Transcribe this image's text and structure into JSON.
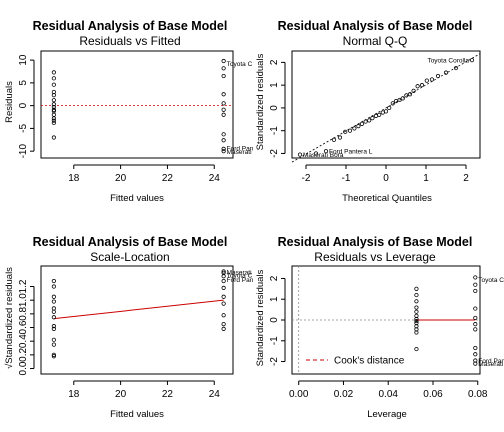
{
  "chart_data": [
    {
      "type": "scatter",
      "title": "Residual Analysis of Base Model",
      "subtitle": "Residuals vs Fitted",
      "xlabel": "Fitted values",
      "ylabel": "Residuals",
      "xlim": [
        16.6,
        24.8
      ],
      "ylim": [
        -11.5,
        12
      ],
      "xticks": [
        18,
        20,
        22,
        24
      ],
      "yticks": [
        -10,
        -5,
        0,
        5,
        10
      ],
      "hline": {
        "y": 0,
        "color": "#cc0000",
        "dash": "2,2"
      },
      "points": [
        {
          "x": 17.15,
          "y": 7.3
        },
        {
          "x": 17.15,
          "y": 6.0
        },
        {
          "x": 17.15,
          "y": 4.6
        },
        {
          "x": 17.15,
          "y": 3.0
        },
        {
          "x": 17.15,
          "y": 2.3
        },
        {
          "x": 17.15,
          "y": 1.2
        },
        {
          "x": 17.15,
          "y": 0.3
        },
        {
          "x": 17.15,
          "y": -0.3
        },
        {
          "x": 17.15,
          "y": -0.9
        },
        {
          "x": 17.15,
          "y": -1.2
        },
        {
          "x": 17.15,
          "y": -2.0
        },
        {
          "x": 17.15,
          "y": -2.8
        },
        {
          "x": 17.15,
          "y": -3.3
        },
        {
          "x": 17.15,
          "y": -3.8
        },
        {
          "x": 17.15,
          "y": -7.0
        },
        {
          "x": 24.4,
          "y": 9.8
        },
        {
          "x": 24.4,
          "y": 8.2
        },
        {
          "x": 24.4,
          "y": 6.5
        },
        {
          "x": 24.4,
          "y": 2.5
        },
        {
          "x": 24.4,
          "y": 0.5
        },
        {
          "x": 24.4,
          "y": -0.9
        },
        {
          "x": 24.4,
          "y": -2.0
        },
        {
          "x": 24.4,
          "y": -6.3
        },
        {
          "x": 24.4,
          "y": -7.6
        },
        {
          "x": 24.4,
          "y": -9.5
        },
        {
          "x": 24.4,
          "y": -10.0
        }
      ],
      "labels": [
        {
          "text": "Toyota C",
          "x": 24.4,
          "y": 9.3
        },
        {
          "text": "Ford Pan",
          "x": 24.4,
          "y": -9.3
        },
        {
          "text": "Maserati",
          "x": 24.4,
          "y": -10.1
        }
      ]
    },
    {
      "type": "scatter",
      "title": "Residual Analysis of Base Model",
      "subtitle": "Normal Q-Q",
      "xlabel": "Theoretical Quantiles",
      "ylabel": "Standardized residuals",
      "xlim": [
        -2.35,
        2.35
      ],
      "ylim": [
        -2.2,
        2.5
      ],
      "xticks": [
        -2,
        -1,
        0,
        1,
        2
      ],
      "yticks": [
        -2,
        -1,
        0,
        1,
        2
      ],
      "refline": {
        "x1": -2.35,
        "y1": -2.38,
        "x2": 2.35,
        "y2": 2.38,
        "color": "#000",
        "dash": "2,2"
      },
      "points": [
        {
          "x": -2.15,
          "y": -2.05
        },
        {
          "x": -1.75,
          "y": -2.0
        },
        {
          "x": -1.5,
          "y": -1.9
        },
        {
          "x": -1.3,
          "y": -1.4
        },
        {
          "x": -1.15,
          "y": -1.3
        },
        {
          "x": -1.02,
          "y": -1.05
        },
        {
          "x": -0.9,
          "y": -1.0
        },
        {
          "x": -0.79,
          "y": -0.9
        },
        {
          "x": -0.69,
          "y": -0.8
        },
        {
          "x": -0.6,
          "y": -0.7
        },
        {
          "x": -0.51,
          "y": -0.6
        },
        {
          "x": -0.42,
          "y": -0.55
        },
        {
          "x": -0.34,
          "y": -0.45
        },
        {
          "x": -0.25,
          "y": -0.35
        },
        {
          "x": -0.17,
          "y": -0.3
        },
        {
          "x": -0.08,
          "y": -0.2
        },
        {
          "x": 0.0,
          "y": -0.15
        },
        {
          "x": 0.08,
          "y": 0.0
        },
        {
          "x": 0.17,
          "y": 0.2
        },
        {
          "x": 0.25,
          "y": 0.3
        },
        {
          "x": 0.34,
          "y": 0.35
        },
        {
          "x": 0.42,
          "y": 0.42
        },
        {
          "x": 0.51,
          "y": 0.55
        },
        {
          "x": 0.6,
          "y": 0.6
        },
        {
          "x": 0.69,
          "y": 0.75
        },
        {
          "x": 0.79,
          "y": 0.95
        },
        {
          "x": 0.9,
          "y": 1.0
        },
        {
          "x": 1.02,
          "y": 1.2
        },
        {
          "x": 1.15,
          "y": 1.25
        },
        {
          "x": 1.3,
          "y": 1.4
        },
        {
          "x": 1.5,
          "y": 1.55
        },
        {
          "x": 1.75,
          "y": 1.75
        },
        {
          "x": 2.15,
          "y": 2.1
        }
      ],
      "labels": [
        {
          "text": "Toyota Corolla",
          "x": 2.15,
          "y": 2.1,
          "anchor": "end"
        },
        {
          "text": "Ford Pantera L",
          "x": -1.5,
          "y": -1.9,
          "anchor": "start"
        },
        {
          "text": "Maserati Bora",
          "x": -2.15,
          "y": -2.05,
          "anchor": "start"
        }
      ]
    },
    {
      "type": "scatter",
      "title": "Residual Analysis of Base Model",
      "subtitle": "Scale-Location",
      "xlabel": "Fitted values",
      "ylabel": "√Standardized residuals",
      "xlim": [
        16.6,
        24.8
      ],
      "ylim": [
        -0.08,
        1.5
      ],
      "xticks": [
        18,
        20,
        22,
        24
      ],
      "yticks": [
        0.0,
        0.2,
        0.4,
        0.6,
        0.8,
        1.0,
        1.2
      ],
      "ytick_labels": [
        "0.0",
        "0.2",
        "0.4",
        "0.6",
        "0.8",
        "1.0",
        "1.2"
      ],
      "trend": {
        "x1": 17.15,
        "y1": 0.73,
        "x2": 24.4,
        "y2": 1.0,
        "color": "#cc0000"
      },
      "points": [
        {
          "x": 17.15,
          "y": 1.28
        },
        {
          "x": 17.15,
          "y": 1.2
        },
        {
          "x": 17.15,
          "y": 1.05
        },
        {
          "x": 17.15,
          "y": 0.98
        },
        {
          "x": 17.15,
          "y": 0.88
        },
        {
          "x": 17.15,
          "y": 0.83
        },
        {
          "x": 17.15,
          "y": 0.75
        },
        {
          "x": 17.15,
          "y": 0.62
        },
        {
          "x": 17.15,
          "y": 0.58
        },
        {
          "x": 17.15,
          "y": 0.42
        },
        {
          "x": 17.15,
          "y": 0.35
        },
        {
          "x": 17.15,
          "y": 0.2
        },
        {
          "x": 17.15,
          "y": 0.18
        },
        {
          "x": 24.4,
          "y": 1.42
        },
        {
          "x": 24.4,
          "y": 1.4
        },
        {
          "x": 24.4,
          "y": 1.35
        },
        {
          "x": 24.4,
          "y": 1.28
        },
        {
          "x": 24.4,
          "y": 1.18
        },
        {
          "x": 24.4,
          "y": 1.05
        },
        {
          "x": 24.4,
          "y": 0.95
        },
        {
          "x": 24.4,
          "y": 0.78
        },
        {
          "x": 24.4,
          "y": 0.65
        },
        {
          "x": 24.4,
          "y": 0.58
        }
      ],
      "labels": [
        {
          "text": "Maserati",
          "x": 24.4,
          "y": 1.41
        },
        {
          "text": "Toyota C",
          "x": 24.4,
          "y": 1.37
        },
        {
          "text": "Ford Pan",
          "x": 24.4,
          "y": 1.3
        }
      ]
    },
    {
      "type": "scatter",
      "title": "Residual Analysis of Base Model",
      "subtitle": "Residuals vs Leverage",
      "xlabel": "Leverage",
      "ylabel": "Standardized residuals",
      "xlim": [
        -0.003,
        0.081
      ],
      "ylim": [
        -2.6,
        2.6
      ],
      "xticks": [
        0.0,
        0.02,
        0.04,
        0.06,
        0.08
      ],
      "xtick_labels": [
        "0.00",
        "0.02",
        "0.04",
        "0.06",
        "0.08"
      ],
      "yticks": [
        -2,
        -1,
        0,
        1,
        2
      ],
      "hline": {
        "y": 0,
        "color": "#888888",
        "dash": "2,2"
      },
      "vline": {
        "x": 0,
        "color": "#888888",
        "dash": "2,2"
      },
      "trend": {
        "x1": 0.0526,
        "y1": 0.0,
        "x2": 0.0789,
        "y2": 0.0,
        "color": "#cc0000"
      },
      "legend": {
        "label": "Cook's distance",
        "color": "#cc0000",
        "dash": "4,3",
        "position": "bottom-left"
      },
      "points": [
        {
          "x": 0.0526,
          "y": 1.5
        },
        {
          "x": 0.0526,
          "y": 1.2
        },
        {
          "x": 0.0526,
          "y": 0.9
        },
        {
          "x": 0.0526,
          "y": 0.6
        },
        {
          "x": 0.0526,
          "y": 0.4
        },
        {
          "x": 0.0526,
          "y": 0.2
        },
        {
          "x": 0.0526,
          "y": 0.05
        },
        {
          "x": 0.0526,
          "y": -0.05
        },
        {
          "x": 0.0526,
          "y": -0.15
        },
        {
          "x": 0.0526,
          "y": -0.3
        },
        {
          "x": 0.0526,
          "y": -0.45
        },
        {
          "x": 0.0526,
          "y": -0.6
        },
        {
          "x": 0.0526,
          "y": -1.4
        },
        {
          "x": 0.0789,
          "y": 2.05
        },
        {
          "x": 0.0789,
          "y": 1.7
        },
        {
          "x": 0.0789,
          "y": 1.4
        },
        {
          "x": 0.0789,
          "y": 0.55
        },
        {
          "x": 0.0789,
          "y": 0.1
        },
        {
          "x": 0.0789,
          "y": -0.2
        },
        {
          "x": 0.0789,
          "y": -0.45
        },
        {
          "x": 0.0789,
          "y": -1.35
        },
        {
          "x": 0.0789,
          "y": -1.65
        },
        {
          "x": 0.0789,
          "y": -1.95
        },
        {
          "x": 0.0789,
          "y": -2.1
        }
      ],
      "labels": [
        {
          "text": "Toyota C",
          "x": 0.0789,
          "y": 1.95
        },
        {
          "text": "Ford Pan",
          "x": 0.0789,
          "y": -1.95
        },
        {
          "text": "Maserati",
          "x": 0.0789,
          "y": -2.1
        }
      ]
    }
  ]
}
